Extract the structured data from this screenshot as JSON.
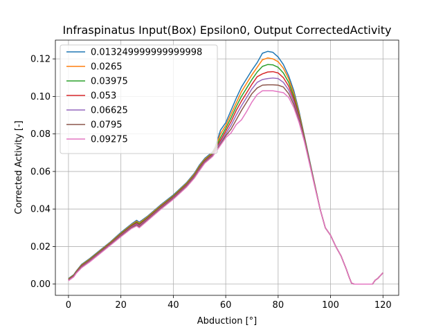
{
  "chart_data": {
    "type": "line",
    "title": "Infraspinatus Input(Box) Epsilon0, Output CorrectedActivity",
    "xlabel": "Abduction [°]",
    "ylabel": "Corrected Activity [-]",
    "xlim": [
      -5,
      126
    ],
    "ylim": [
      -0.006,
      0.13
    ],
    "xticks": [
      0,
      20,
      40,
      60,
      80,
      100,
      120
    ],
    "yticks": [
      0.0,
      0.02,
      0.04,
      0.06,
      0.08,
      0.1,
      0.12
    ],
    "xtick_labels": [
      "0",
      "20",
      "40",
      "60",
      "80",
      "100",
      "120"
    ],
    "ytick_labels": [
      "0.00",
      "0.02",
      "0.04",
      "0.06",
      "0.08",
      "0.10",
      "0.12"
    ],
    "grid": true,
    "legend_position": "upper-left",
    "x": [
      0,
      2,
      3,
      5,
      8,
      12,
      16,
      20,
      24,
      26,
      27,
      30,
      35,
      40,
      45,
      48,
      50,
      52,
      55,
      56,
      58,
      60,
      62,
      64,
      66,
      68,
      70,
      72,
      74,
      76,
      78,
      80,
      82,
      84,
      86,
      88,
      90,
      92,
      94,
      96,
      98,
      100,
      102,
      104,
      106,
      107,
      108,
      109,
      110,
      112,
      114,
      116,
      117,
      118,
      120
    ],
    "series": [
      {
        "name": "0.013249999999999998",
        "color": "#1f77b4",
        "values": [
          0.003,
          0.005,
          0.007,
          0.0105,
          0.0135,
          0.018,
          0.0225,
          0.0275,
          0.032,
          0.034,
          0.033,
          0.036,
          0.042,
          0.0475,
          0.054,
          0.059,
          0.0635,
          0.067,
          0.0705,
          0.073,
          0.082,
          0.086,
          0.0925,
          0.099,
          0.105,
          0.1095,
          0.114,
          0.118,
          0.123,
          0.124,
          0.1235,
          0.121,
          0.117,
          0.111,
          0.103,
          0.092,
          0.079,
          0.066,
          0.053,
          0.04,
          0.03,
          0.026,
          0.02,
          0.015,
          0.008,
          0.004,
          0.0005,
          0.0,
          0.0,
          0.0,
          0.0,
          0.0,
          0.002,
          0.003,
          0.006
        ]
      },
      {
        "name": "0.0265",
        "color": "#ff7f0e",
        "values": [
          0.0028,
          0.0048,
          0.0068,
          0.0102,
          0.0132,
          0.0177,
          0.0222,
          0.0271,
          0.0316,
          0.0335,
          0.0325,
          0.0356,
          0.0416,
          0.0471,
          0.0536,
          0.0585,
          0.063,
          0.0665,
          0.07,
          0.0725,
          0.08,
          0.0845,
          0.0905,
          0.0965,
          0.1025,
          0.107,
          0.1115,
          0.1155,
          0.1195,
          0.1205,
          0.12,
          0.1185,
          0.115,
          0.1095,
          0.1015,
          0.091,
          0.0785,
          0.0655,
          0.0528,
          0.04,
          0.03,
          0.026,
          0.02,
          0.015,
          0.008,
          0.004,
          0.0005,
          0.0,
          0.0,
          0.0,
          0.0,
          0.0,
          0.002,
          0.003,
          0.006
        ]
      },
      {
        "name": "0.03975",
        "color": "#2ca02c",
        "values": [
          0.0026,
          0.0046,
          0.0066,
          0.0099,
          0.0129,
          0.0174,
          0.0219,
          0.0268,
          0.0312,
          0.033,
          0.032,
          0.0352,
          0.0412,
          0.0468,
          0.0532,
          0.058,
          0.0625,
          0.066,
          0.0696,
          0.072,
          0.078,
          0.083,
          0.0885,
          0.0945,
          0.1,
          0.1045,
          0.109,
          0.113,
          0.116,
          0.117,
          0.1168,
          0.1155,
          0.1125,
          0.1075,
          0.1,
          0.09,
          0.078,
          0.0652,
          0.0526,
          0.04,
          0.03,
          0.026,
          0.02,
          0.015,
          0.008,
          0.004,
          0.0005,
          0.0,
          0.0,
          0.0,
          0.0,
          0.0,
          0.002,
          0.003,
          0.006
        ]
      },
      {
        "name": "0.053",
        "color": "#d62728",
        "values": [
          0.0024,
          0.0044,
          0.0064,
          0.0096,
          0.0126,
          0.0171,
          0.0216,
          0.0264,
          0.0308,
          0.0325,
          0.0315,
          0.0348,
          0.0408,
          0.0464,
          0.0528,
          0.0576,
          0.062,
          0.0656,
          0.0692,
          0.0715,
          0.0765,
          0.0815,
          0.0865,
          0.0925,
          0.0975,
          0.102,
          0.1065,
          0.1105,
          0.112,
          0.113,
          0.1132,
          0.1125,
          0.11,
          0.1055,
          0.0985,
          0.089,
          0.0775,
          0.0648,
          0.0524,
          0.04,
          0.03,
          0.026,
          0.02,
          0.015,
          0.008,
          0.004,
          0.0005,
          0.0,
          0.0,
          0.0,
          0.0,
          0.0,
          0.002,
          0.003,
          0.006
        ]
      },
      {
        "name": "0.06625",
        "color": "#9467bd",
        "values": [
          0.0022,
          0.0042,
          0.0062,
          0.0093,
          0.0123,
          0.0168,
          0.0213,
          0.026,
          0.0304,
          0.032,
          0.031,
          0.0344,
          0.0404,
          0.046,
          0.0524,
          0.0572,
          0.0615,
          0.0652,
          0.0688,
          0.071,
          0.0755,
          0.08,
          0.0845,
          0.09,
          0.095,
          0.0995,
          0.104,
          0.1075,
          0.109,
          0.1095,
          0.1098,
          0.1095,
          0.1075,
          0.1035,
          0.097,
          0.088,
          0.077,
          0.0645,
          0.0522,
          0.04,
          0.03,
          0.026,
          0.02,
          0.015,
          0.008,
          0.004,
          0.0005,
          0.0,
          0.0,
          0.0,
          0.0,
          0.0,
          0.002,
          0.003,
          0.006
        ]
      },
      {
        "name": "0.0795",
        "color": "#8c564b",
        "values": [
          0.002,
          0.004,
          0.006,
          0.009,
          0.012,
          0.0165,
          0.021,
          0.0256,
          0.03,
          0.0315,
          0.0305,
          0.034,
          0.04,
          0.0456,
          0.052,
          0.0568,
          0.061,
          0.0648,
          0.0684,
          0.0705,
          0.0745,
          0.079,
          0.0825,
          0.0875,
          0.0925,
          0.097,
          0.1015,
          0.1045,
          0.106,
          0.1062,
          0.1062,
          0.106,
          0.105,
          0.1015,
          0.0955,
          0.087,
          0.0765,
          0.0642,
          0.052,
          0.04,
          0.03,
          0.026,
          0.02,
          0.015,
          0.008,
          0.004,
          0.0005,
          0.0,
          0.0,
          0.0,
          0.0,
          0.0,
          0.002,
          0.003,
          0.006
        ]
      },
      {
        "name": "0.09275",
        "color": "#e377c2",
        "values": [
          0.0018,
          0.0038,
          0.0058,
          0.0087,
          0.0117,
          0.0162,
          0.0207,
          0.0252,
          0.0296,
          0.031,
          0.03,
          0.0336,
          0.0396,
          0.0452,
          0.0516,
          0.0564,
          0.0605,
          0.0644,
          0.068,
          0.07,
          0.074,
          0.078,
          0.0805,
          0.085,
          0.0875,
          0.092,
          0.097,
          0.101,
          0.103,
          0.103,
          0.103,
          0.1025,
          0.102,
          0.0995,
          0.094,
          0.086,
          0.076,
          0.064,
          0.0518,
          0.04,
          0.03,
          0.026,
          0.02,
          0.015,
          0.008,
          0.004,
          0.0005,
          0.0,
          0.0,
          0.0,
          0.0,
          0.0,
          0.002,
          0.003,
          0.006
        ]
      }
    ]
  }
}
